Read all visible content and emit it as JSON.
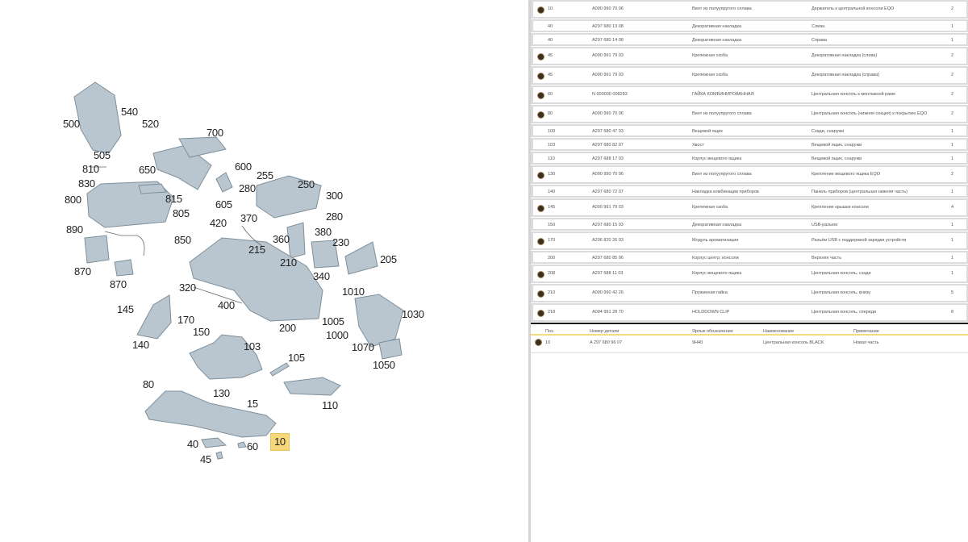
{
  "diagram": {
    "highlight_color": "#f6d77a",
    "labels": [
      "500",
      "540",
      "520",
      "700",
      "505",
      "810",
      "830",
      "650",
      "600",
      "255",
      "250",
      "280",
      "300",
      "800",
      "815",
      "605",
      "805",
      "420",
      "370",
      "280",
      "890",
      "850",
      "360",
      "380",
      "215",
      "230",
      "210",
      "205",
      "870",
      "870",
      "340",
      "320",
      "1010",
      "400",
      "145",
      "1030",
      "170",
      "200",
      "1005",
      "150",
      "1000",
      "140",
      "103",
      "1070",
      "105",
      "1050",
      "80",
      "130",
      "15",
      "110",
      "40",
      "60",
      "10",
      "45"
    ],
    "selected_label": "10"
  },
  "parts": [
    {
      "badge": true,
      "pos": "10",
      "part": "A000 990 70 06",
      "name": "Винт из полуупругого сплава",
      "note": "Держатель к центральной консоли EQO",
      "qty": "2",
      "tall": true
    },
    {
      "badge": false,
      "pos": "40",
      "part": "A297 680 13 08",
      "name": "Декоративная накладка",
      "note": "Слева",
      "qty": "1"
    },
    {
      "badge": false,
      "pos": "40",
      "part": "A297 680 14 08",
      "name": "Декоративная накладка",
      "note": "Справа",
      "qty": "1"
    },
    {
      "badge": true,
      "pos": "45",
      "part": "A000 991 79 03",
      "name": "Крепежная скоба",
      "note": "Декоративная накладка (слева)",
      "qty": "2",
      "tall": true
    },
    {
      "badge": true,
      "pos": "45",
      "part": "A000 991 79 03",
      "name": "Крепежная скоба",
      "note": "Декоративная накладка (справа)",
      "qty": "2",
      "tall": true
    },
    {
      "badge": true,
      "pos": "60",
      "part": "N 000000 008283",
      "name": "ГАЙКА КОМБИНИРОВАННАЯ",
      "note": "Центральная консоль к монтажной раме",
      "qty": "2",
      "tall": true
    },
    {
      "badge": true,
      "pos": "80",
      "part": "A000 990 70 06",
      "name": "Винт из полуупругого сплава",
      "note": "Центральная консоль (нижняя секция) к покрытию EQO",
      "qty": "2",
      "tall": true
    },
    {
      "badge": false,
      "pos": "100",
      "part": "A297 680 47 03",
      "name": "Вещевой ящик",
      "note": "Сзади, снаружи",
      "qty": "1"
    },
    {
      "badge": false,
      "pos": "103",
      "part": "A297 680 82 07",
      "name": "Хвост",
      "note": "Вещевой ящик, снаружи",
      "qty": "1"
    },
    {
      "badge": false,
      "pos": "110",
      "part": "A297 688 17 03",
      "name": "Корпус вещевого ящика",
      "note": "Вещевой ящик, снаружи",
      "qty": "1"
    },
    {
      "badge": true,
      "pos": "130",
      "part": "A000 990 70 06",
      "name": "Винт из полуупругого сплава",
      "note": "Крепление вещевого ящика EQO",
      "qty": "2",
      "tall": true
    },
    {
      "badge": false,
      "pos": "140",
      "part": "A297 680 72 07",
      "name": "Накладка комбинации приборов",
      "note": "Панель приборов (центральная нижняя часть)",
      "qty": "1"
    },
    {
      "badge": true,
      "pos": "145",
      "part": "A000 991 79 03",
      "name": "Крепежная скоба",
      "note": "Крепление крышки консоли",
      "qty": "4",
      "tall": true
    },
    {
      "badge": false,
      "pos": "150",
      "part": "A297 680 15 03",
      "name": "Декоративная накладка",
      "note": "USB-разъем",
      "qty": "1"
    },
    {
      "badge": true,
      "pos": "170",
      "part": "A206 820 26 03",
      "name": "Модуль ароматизации",
      "note": "Разъём USB с поддержкой зарядки устройств",
      "qty": "1",
      "tall": true
    },
    {
      "badge": false,
      "pos": "200",
      "part": "A297 680 85 06",
      "name": "Корпус центр. консоли",
      "note": "Верхняя часть",
      "qty": "1"
    },
    {
      "badge": true,
      "pos": "208",
      "part": "A297 688 11 03",
      "name": "Корпус вещевого ящика",
      "note": "Центральная консоль, сзади",
      "qty": "1",
      "tall": true
    },
    {
      "badge": true,
      "pos": "210",
      "part": "A000 990 42 26",
      "name": "Пружинная гайка",
      "note": "Центральная консоль, внизу",
      "qty": "5",
      "tall": true
    },
    {
      "badge": true,
      "pos": "218",
      "part": "A004 991 28 70",
      "name": "HOLDDOWN CLIP",
      "note": "Центральная консоль, спереди",
      "qty": "8",
      "tall": true
    }
  ],
  "selected_table": {
    "headers": [
      "Поз.",
      "Номер детали",
      "Ярлык обозначения",
      "Наименование",
      "Примечание"
    ],
    "row": {
      "pos": "10",
      "part": "A 297 680 96 07",
      "label": "9H40",
      "name": "Центральная консоль BLACK",
      "note": "Новая часть"
    }
  }
}
